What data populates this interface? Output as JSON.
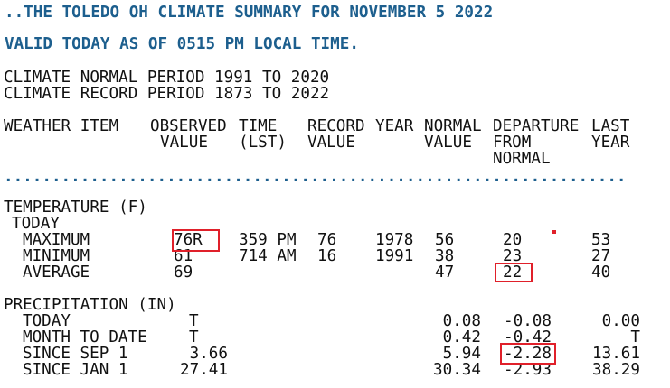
{
  "header": {
    "title": "..THE TOLEDO OH CLIMATE SUMMARY FOR NOVEMBER 5 2022",
    "valid": "VALID TODAY AS OF 0515 PM LOCAL TIME.",
    "normal_period": "CLIMATE NORMAL PERIOD 1991 TO 2020",
    "record_period": "CLIMATE RECORD PERIOD 1873 TO 2022"
  },
  "columns": {
    "item": [
      "WEATHER ITEM"
    ],
    "observed": [
      "OBSERVED",
      "VALUE"
    ],
    "time": [
      "TIME",
      "(LST)"
    ],
    "record": [
      "RECORD",
      "VALUE"
    ],
    "year": [
      "YEAR"
    ],
    "normal": [
      "NORMAL",
      "VALUE"
    ],
    "departure": [
      "DEPARTURE",
      "FROM",
      "NORMAL"
    ],
    "last": [
      "LAST",
      "YEAR"
    ]
  },
  "separator": ".................................................................",
  "temperature": {
    "title": "TEMPERATURE (F)",
    "subtitle": "TODAY",
    "rows": [
      {
        "item": "MAXIMUM",
        "observed": "76R",
        "time": "359 PM",
        "record": "76",
        "year": "1978",
        "normal": "56",
        "departure": "20",
        "last": "53"
      },
      {
        "item": "MINIMUM",
        "observed": "61",
        "time": "714 AM",
        "record": "16",
        "year": "1991",
        "normal": "38",
        "departure": "23",
        "last": "27"
      },
      {
        "item": "AVERAGE",
        "observed": "69",
        "normal": "47",
        "departure": "22",
        "last": "40"
      }
    ]
  },
  "precipitation": {
    "title": "PRECIPITATION (IN)",
    "rows": [
      {
        "item": "TODAY",
        "observed": "T",
        "normal": "0.08",
        "departure": "-0.08",
        "last": "0.00"
      },
      {
        "item": "MONTH TO DATE",
        "observed": "T",
        "normal": "0.42",
        "departure": "-0.42",
        "last": "T"
      },
      {
        "item": "SINCE SEP 1",
        "observed": "3.66",
        "normal": "5.94",
        "departure": "-2.28",
        "last": "13.61"
      },
      {
        "item": "SINCE JAN 1",
        "observed": "27.41",
        "normal": "30.34",
        "departure": "-2.93",
        "last": "38.29"
      }
    ]
  }
}
